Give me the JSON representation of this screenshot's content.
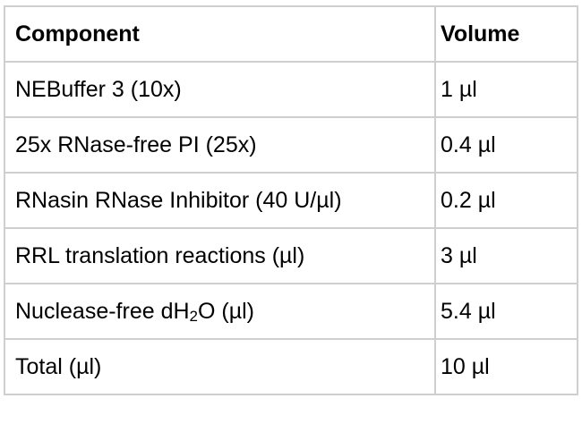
{
  "table": {
    "headers": {
      "component": "Component",
      "volume": "Volume"
    },
    "rows": [
      {
        "component": "NEBuffer 3 (10x)",
        "volume": "1 µl"
      },
      {
        "component": "25x RNase-free PI (25x)",
        "volume": "0.4 µl"
      },
      {
        "component": "RNasin RNase Inhibitor (40 U/µl)",
        "volume": "0.2 µl"
      },
      {
        "component": "RRL translation reactions (µl)",
        "volume": "3 µl"
      },
      {
        "component_before": "Nuclease-free dH",
        "component_sub": "2",
        "component_after": "O (µl)",
        "volume": "5.4 µl"
      },
      {
        "component": "Total (µl)",
        "volume": "10 µl"
      }
    ]
  }
}
